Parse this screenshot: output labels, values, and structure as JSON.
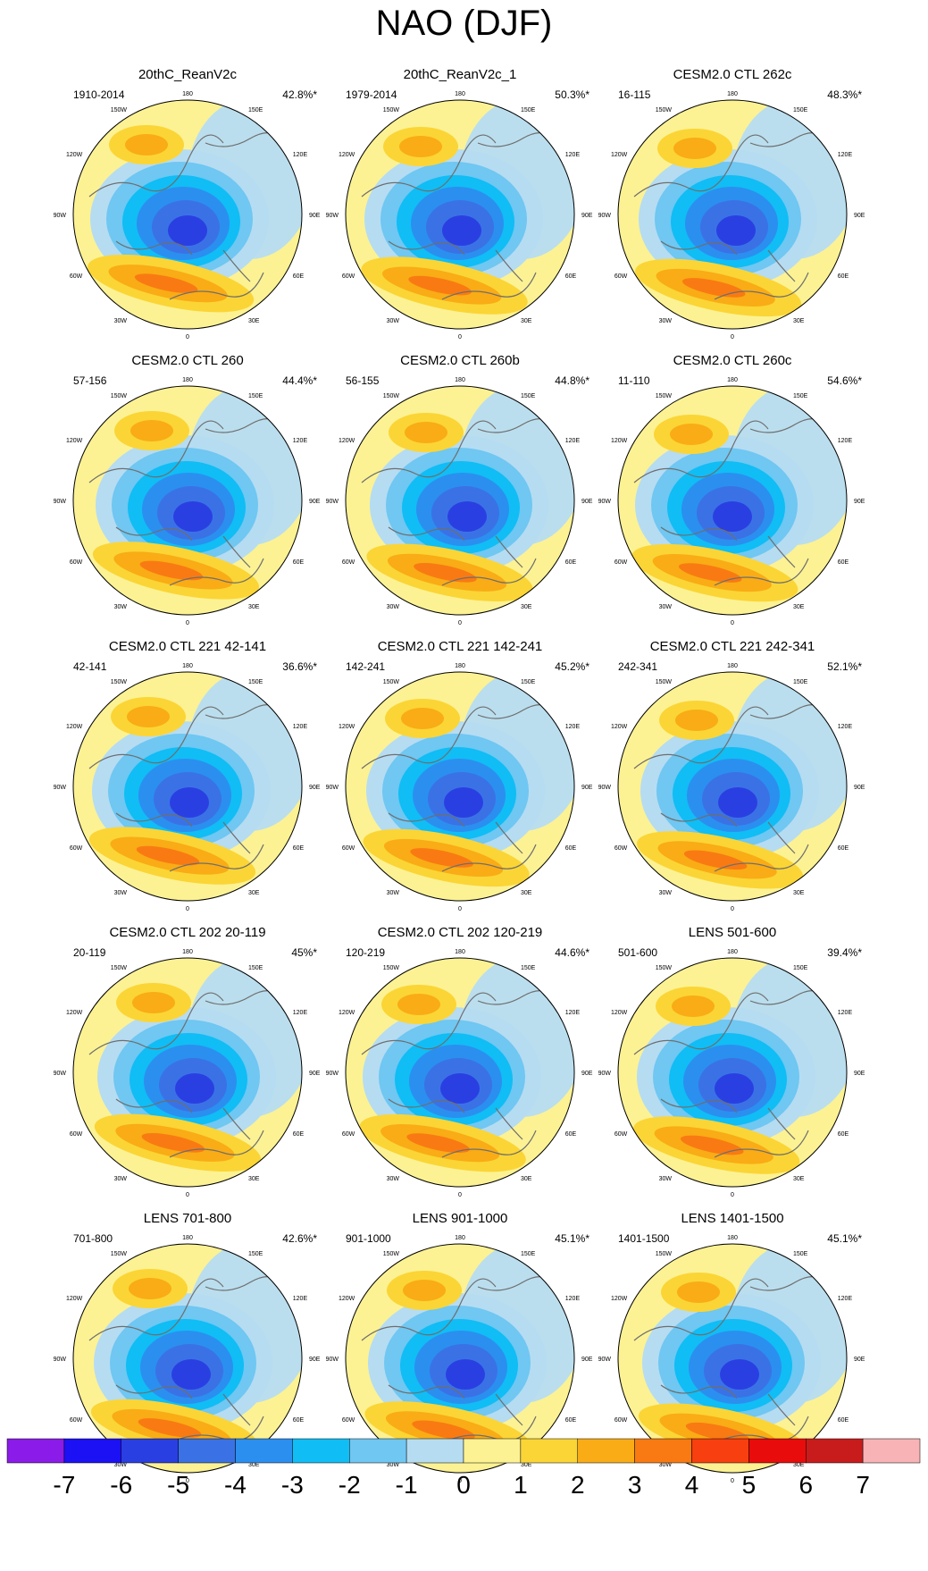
{
  "title": "NAO (DJF)",
  "panels": [
    {
      "title": "20thC_ReanV2c",
      "period": "1910-2014",
      "variance": "42.8%*"
    },
    {
      "title": "20thC_ReanV2c_1",
      "period": "1979-2014",
      "variance": "50.3%*"
    },
    {
      "title": "CESM2.0 CTL 262c",
      "period": "16-115",
      "variance": "48.3%*"
    },
    {
      "title": "CESM2.0 CTL 260",
      "period": "57-156",
      "variance": "44.4%*"
    },
    {
      "title": "CESM2.0 CTL 260b",
      "period": "56-155",
      "variance": "44.8%*"
    },
    {
      "title": "CESM2.0 CTL 260c",
      "period": "11-110",
      "variance": "54.6%*"
    },
    {
      "title": "CESM2.0 CTL 221 42-141",
      "period": "42-141",
      "variance": "36.6%*"
    },
    {
      "title": "CESM2.0 CTL 221 142-241",
      "period": "142-241",
      "variance": "45.2%*"
    },
    {
      "title": "CESM2.0 CTL 221 242-341",
      "period": "242-341",
      "variance": "52.1%*"
    },
    {
      "title": "CESM2.0 CTL 202 20-119",
      "period": "20-119",
      "variance": "45%*"
    },
    {
      "title": "CESM2.0 CTL 202 120-219",
      "period": "120-219",
      "variance": "44.6%*"
    },
    {
      "title": "LENS 501-600",
      "period": "501-600",
      "variance": "39.4%*"
    },
    {
      "title": "LENS 701-800",
      "period": "701-800",
      "variance": "42.6%*"
    },
    {
      "title": "LENS 901-1000",
      "period": "901-1000",
      "variance": "45.1%*"
    },
    {
      "title": "LENS 1401-1500",
      "period": "1401-1500",
      "variance": "45.1%*"
    }
  ],
  "longitude_labels": [
    "180",
    "150E",
    "120E",
    "90E",
    "60E",
    "30E",
    "0",
    "30W",
    "60W",
    "90W",
    "120W",
    "150W"
  ],
  "colorbar": {
    "labels": [
      "-7",
      "-6",
      "-5",
      "-4",
      "-3",
      "-2",
      "-1",
      "0",
      "1",
      "2",
      "3",
      "4",
      "5",
      "6",
      "7"
    ],
    "colors": [
      "#8a1be8",
      "#1c10f5",
      "#2a3fe2",
      "#3a72e6",
      "#2b8ff0",
      "#10bdf5",
      "#6fc7f2",
      "#b6dcf2",
      "#fcf294",
      "#fbd535",
      "#f9ac15",
      "#f97a12",
      "#f83f10",
      "#e80c0c",
      "#c81c1c",
      "#f8b3b6"
    ]
  },
  "colors": {
    "map_background": "#fcf294",
    "coastline": "#6e6e6e",
    "border": "#000000"
  }
}
